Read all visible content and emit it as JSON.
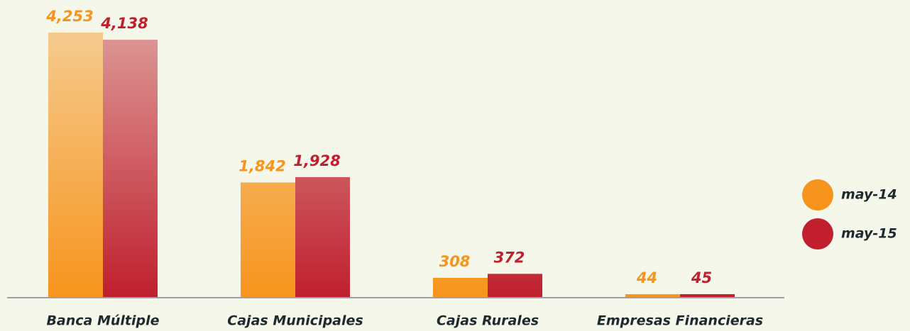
{
  "chart_data": {
    "type": "bar",
    "categories": [
      "Banca Múltiple",
      "Cajas Municipales",
      "Cajas Rurales",
      "Empresas Financieras"
    ],
    "series": [
      {
        "name": "may-14",
        "color": "#f7941d",
        "values": [
          4253,
          1842,
          308,
          44
        ],
        "value_labels": [
          "4,253",
          "1,842",
          "308",
          "44"
        ]
      },
      {
        "name": "may-15",
        "color": "#c0202e",
        "values": [
          4138,
          1928,
          372,
          45
        ],
        "value_labels": [
          "4,138",
          "1,928",
          "372",
          "45"
        ]
      }
    ]
  }
}
